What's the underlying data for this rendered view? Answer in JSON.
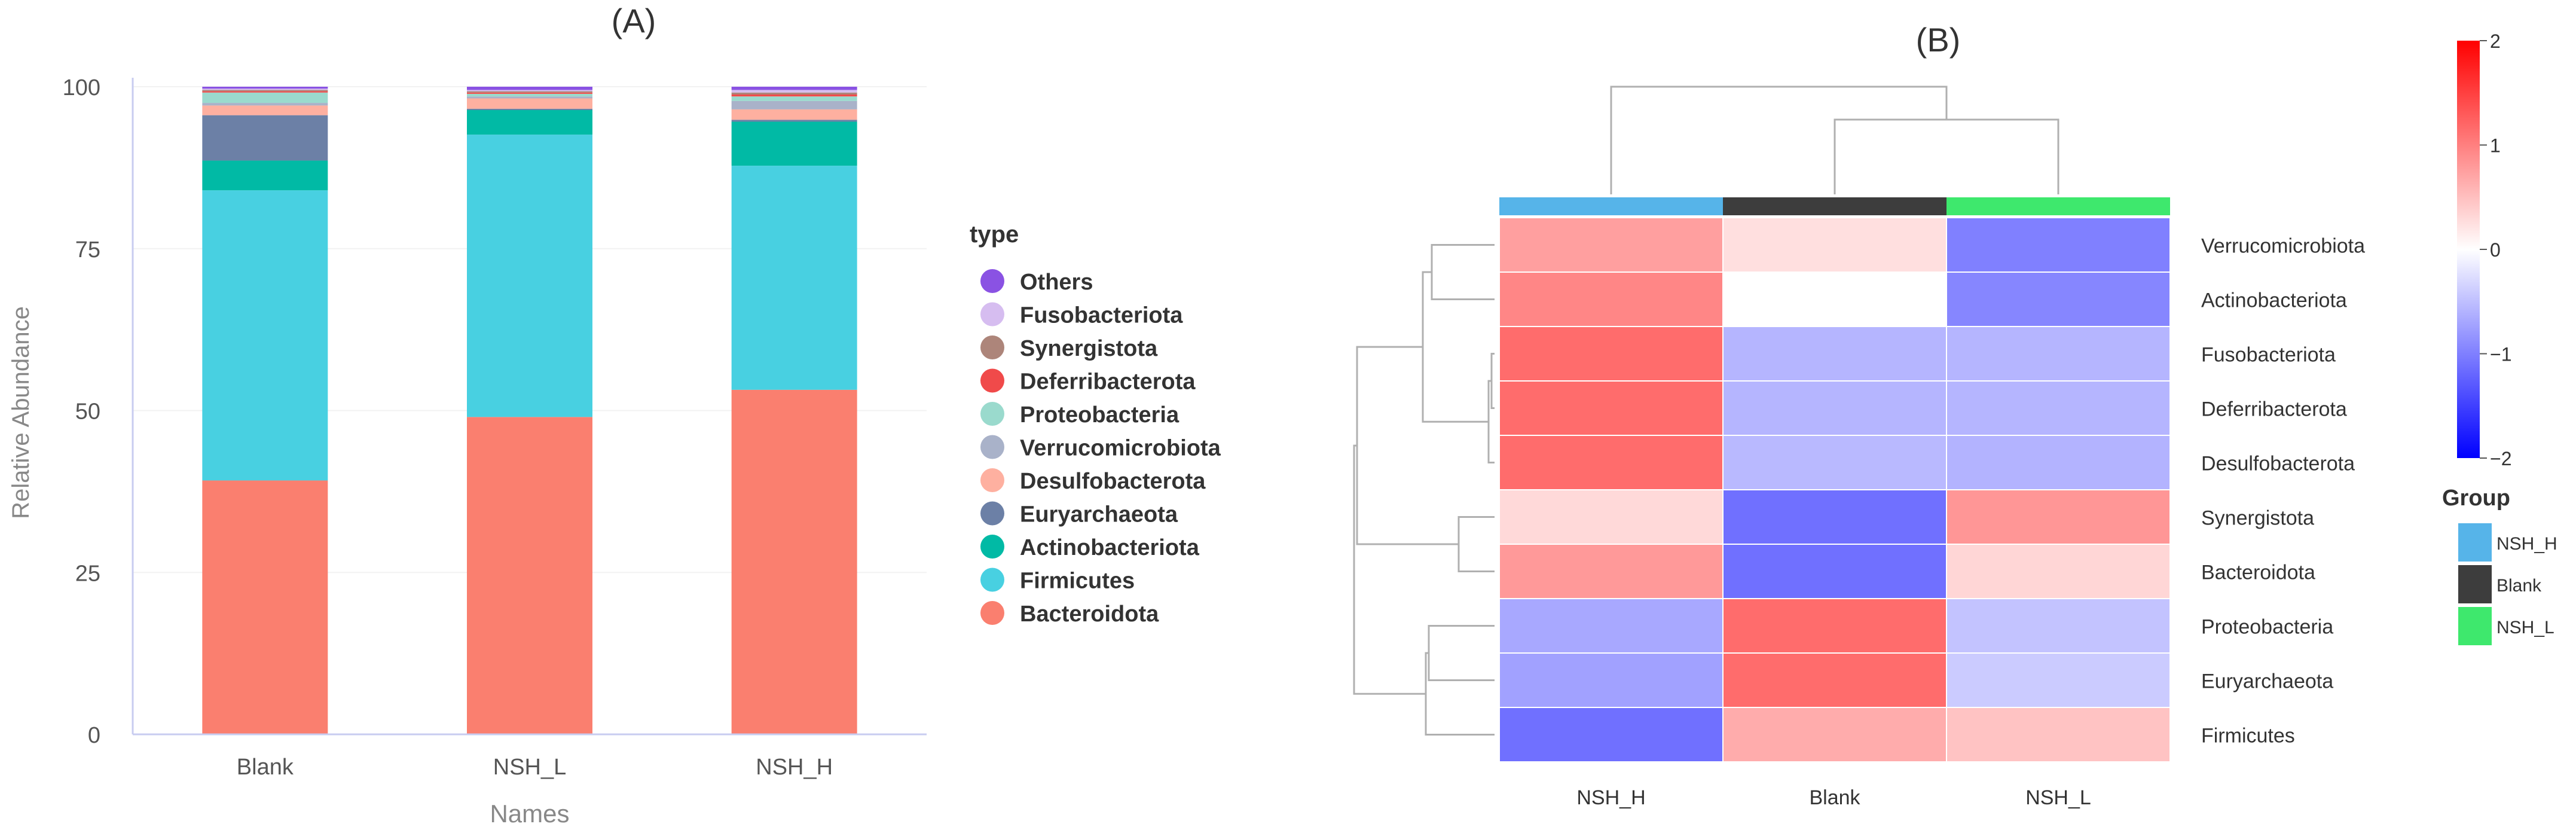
{
  "chart_data": [
    {
      "panel_label": "(A)",
      "type": "bar",
      "stacked": true,
      "categories": [
        "Blank",
        "NSH_L",
        "NSH_H"
      ],
      "xlabel": "Names",
      "ylabel": "Relative Abundance",
      "ylim": [
        0,
        100
      ],
      "yticks": [
        "0",
        "25",
        "50",
        "75",
        "100"
      ],
      "legend_title": "type",
      "legend_position": "right",
      "series": [
        {
          "name": "Bacteroidota",
          "color": "#fa7f6f",
          "values": [
            39.2,
            49.0,
            53.2
          ]
        },
        {
          "name": "Firmicutes",
          "color": "#48d0e1",
          "values": [
            44.8,
            43.6,
            34.6
          ]
        },
        {
          "name": "Actinobacteriota",
          "color": "#01baa5",
          "values": [
            4.6,
            3.8,
            6.8
          ]
        },
        {
          "name": "Euryarchaeota",
          "color": "#6c80a6",
          "values": [
            7.0,
            0.2,
            0.3
          ]
        },
        {
          "name": "Desulfobacterota",
          "color": "#feb0a0",
          "values": [
            1.5,
            1.6,
            1.6
          ]
        },
        {
          "name": "Verrucomicrobiota",
          "color": "#a9b2c9",
          "values": [
            0.4,
            0.3,
            1.3
          ]
        },
        {
          "name": "Proteobacteria",
          "color": "#9adacd",
          "values": [
            1.6,
            0.4,
            0.7
          ]
        },
        {
          "name": "Deferribacterota",
          "color": "#f04a4a",
          "values": [
            0.2,
            0.2,
            0.3
          ]
        },
        {
          "name": "Synergistota",
          "color": "#ad857a",
          "values": [
            0.2,
            0.2,
            0.3
          ]
        },
        {
          "name": "Fusobacteriota",
          "color": "#d6bdf0",
          "values": [
            0.2,
            0.2,
            0.4
          ]
        },
        {
          "name": "Others",
          "color": "#8a52e3",
          "values": [
            0.3,
            0.5,
            0.5
          ]
        }
      ],
      "legend_order": [
        "Others",
        "Fusobacteriota",
        "Synergistota",
        "Deferribacterota",
        "Proteobacteria",
        "Verrucomicrobiota",
        "Desulfobacterota",
        "Euryarchaeota",
        "Actinobacteriota",
        "Firmicutes",
        "Bacteroidota"
      ]
    },
    {
      "panel_label": "(B)",
      "type": "heatmap",
      "columns": [
        "NSH_H",
        "Blank",
        "NSH_L"
      ],
      "rows": [
        "Verrucomicrobiota",
        "Actinobacteriota",
        "Fusobacteriota",
        "Deferribacterota",
        "Desulfobacterota",
        "Synergistota",
        "Bacteroidota",
        "Proteobacteria",
        "Euryarchaeota",
        "Firmicutes"
      ],
      "values": [
        [
          0.75,
          0.25,
          -1.0
        ],
        [
          0.95,
          0.0,
          -0.95
        ],
        [
          1.15,
          -0.58,
          -0.58
        ],
        [
          1.15,
          -0.58,
          -0.58
        ],
        [
          1.15,
          -0.55,
          -0.6
        ],
        [
          0.3,
          -1.12,
          0.82
        ],
        [
          0.8,
          -1.12,
          0.32
        ],
        [
          -0.68,
          1.15,
          -0.47
        ],
        [
          -0.74,
          1.15,
          -0.41
        ],
        [
          -1.12,
          0.65,
          0.47
        ]
      ],
      "color_scale": {
        "min": -2,
        "max": 2,
        "low_color": "#0000ff",
        "mid_color": "#ffffff",
        "high_color": "#ff0000"
      },
      "colorbar_ticks": [
        "2",
        "1",
        "0",
        "−1",
        "−2"
      ],
      "group_legend_title": "Group",
      "groups": [
        {
          "name": "NSH_H",
          "color": "#56b4e9"
        },
        {
          "name": "Blank",
          "color": "#3d3d3d"
        },
        {
          "name": "NSH_L",
          "color": "#3ee86d"
        }
      ],
      "column_groups": [
        "NSH_H",
        "Blank",
        "NSH_L"
      ],
      "column_dendrogram": [
        [
          "Blank",
          "NSH_L"
        ],
        [
          "NSH_H",
          [
            "Blank",
            "NSH_L"
          ]
        ]
      ],
      "row_dendrogram": [
        [
          "Fusobacteriota",
          "Deferribacterota"
        ],
        [
          [
            "Fusobacteriota",
            "Deferribacterota"
          ],
          "Desulfobacterota"
        ],
        [
          "Verrucomicrobiota",
          "Actinobacteriota"
        ],
        [
          [
            "Verrucomicrobiota",
            "Actinobacteriota"
          ],
          [
            [
              "Fusobacteriota",
              "Deferribacterota"
            ],
            "Desulfobacterota"
          ]
        ],
        [
          "Synergistota",
          "Bacteroidota"
        ],
        [
          [
            [
              "Verrucomicrobiota",
              "Actinobacteriota"
            ],
            [
              [
                "Fusobacteriota",
                "Deferribacterota"
              ],
              "Desulfobacterota"
            ]
          ],
          [
            "Synergistota",
            "Bacteroidota"
          ]
        ],
        [
          "Proteobacteria",
          "Euryarchaeota"
        ],
        [
          [
            "Proteobacteria",
            "Euryarchaeota"
          ],
          "Firmicutes"
        ],
        [
          "top_cluster",
          "bottom_cluster"
        ]
      ]
    }
  ]
}
